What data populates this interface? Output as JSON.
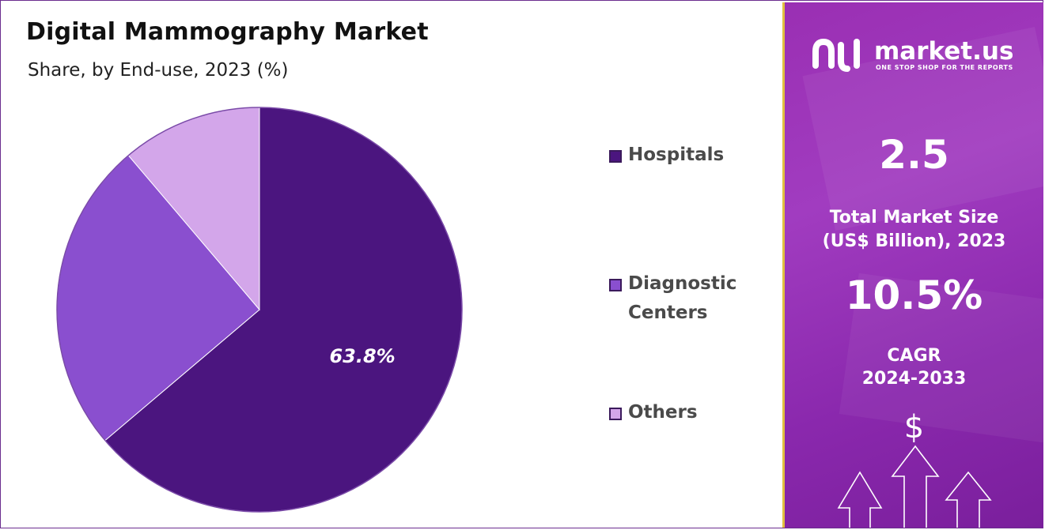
{
  "header": {
    "title": "Digital Mammography Market",
    "subtitle": "Share, by End-use, 2023 (%)"
  },
  "chart_data": {
    "type": "pie",
    "title": "Digital Mammography Market",
    "subtitle": "Share, by End-use, 2023 (%)",
    "categories": [
      "Hospitals",
      "Diagnostic Centers",
      "Others"
    ],
    "values": [
      63.8,
      25.0,
      11.2
    ],
    "data_labels": [
      "63.8%",
      "",
      ""
    ],
    "colors": [
      "#4b157f",
      "#8a4fcf",
      "#d3a6ea"
    ],
    "legend_position": "right"
  },
  "legend": {
    "items": [
      {
        "label": "Hospitals",
        "color": "#4b157f"
      },
      {
        "label": "Diagnostic Centers",
        "color": "#8a4fcf"
      },
      {
        "label": "Others",
        "color": "#d3a6ea"
      }
    ]
  },
  "sidebar": {
    "brand": "market.us",
    "tagline": "ONE STOP SHOP FOR THE REPORTS",
    "market_size_value": "2.5",
    "market_size_label_1": "Total Market Size",
    "market_size_label_2": "(US$ Billion), 2023",
    "cagr_value": "10.5%",
    "cagr_label_1": "CAGR",
    "cagr_label_2": "2024-2033",
    "currency_symbol": "$",
    "icon": "dollar-growth-arrows-icon"
  }
}
